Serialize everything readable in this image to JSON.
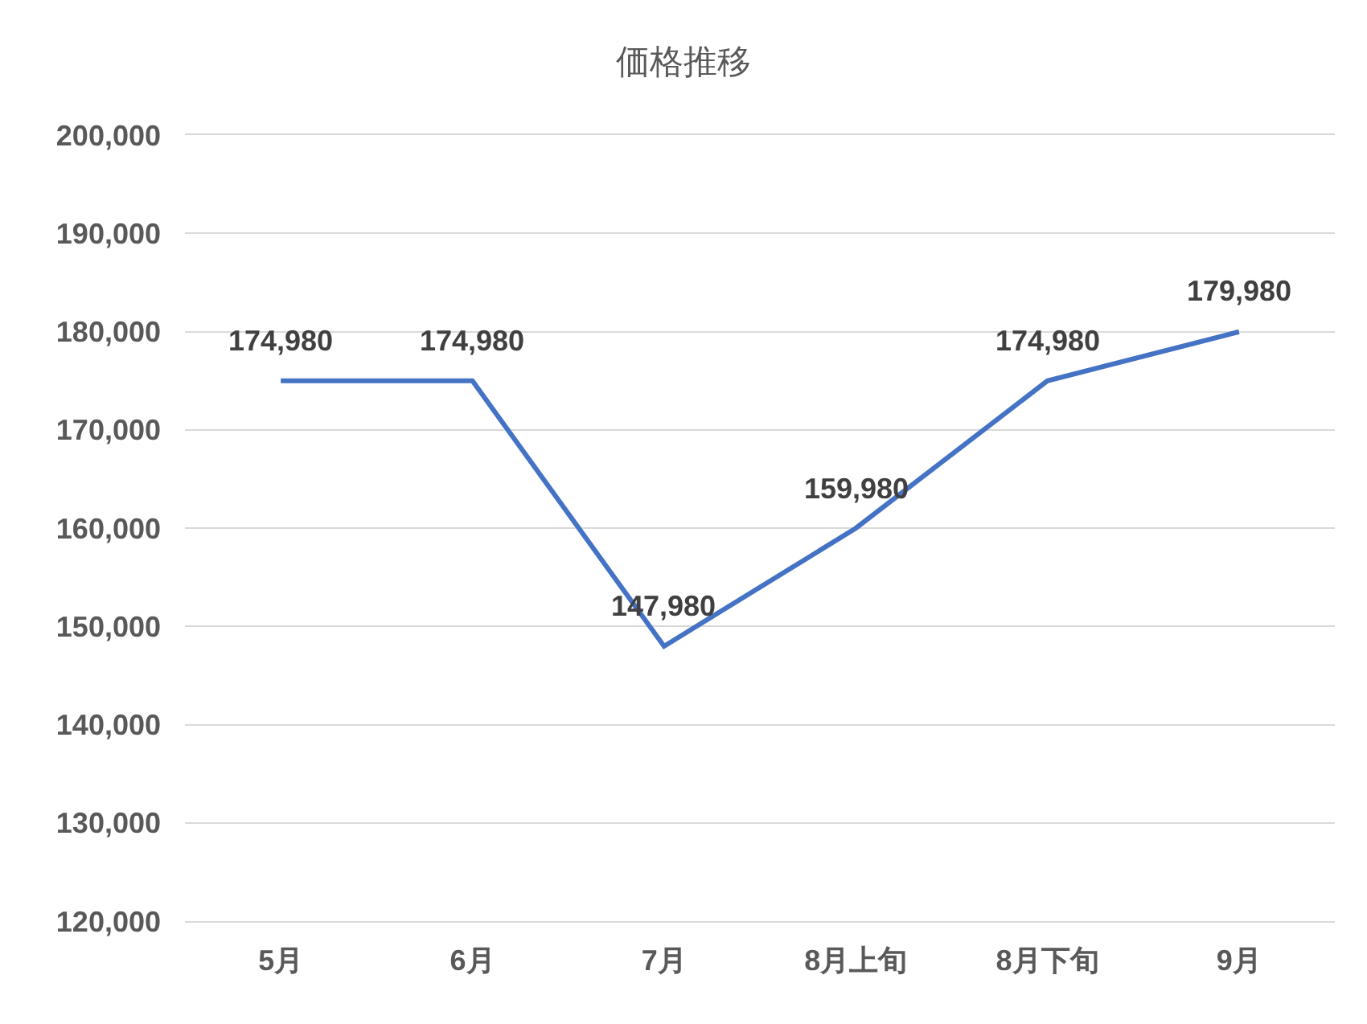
{
  "chart_data": {
    "type": "line",
    "title": "価格推移",
    "categories": [
      "5月",
      "6月",
      "7月",
      "8月上旬",
      "8月下旬",
      "9月"
    ],
    "series": [
      {
        "color": "#4472c4",
        "values": [
          174980,
          174980,
          147980,
          159980,
          174980,
          179980
        ],
        "value_labels": [
          "174,980",
          "174,980",
          "147,980",
          "159,980",
          "174,980",
          "179,980"
        ]
      }
    ],
    "ylim": [
      120000,
      200000
    ],
    "yticks": [
      {
        "value": 120000,
        "label": "120,000"
      },
      {
        "value": 130000,
        "label": "130,000"
      },
      {
        "value": 140000,
        "label": "140,000"
      },
      {
        "value": 150000,
        "label": "150,000"
      },
      {
        "value": 160000,
        "label": "160,000"
      },
      {
        "value": 170000,
        "label": "170,000"
      },
      {
        "value": 180000,
        "label": "180,000"
      },
      {
        "value": 190000,
        "label": "190,000"
      },
      {
        "value": 200000,
        "label": "200,000"
      }
    ],
    "grid": "y",
    "marker": "none",
    "line_style": "solid"
  }
}
